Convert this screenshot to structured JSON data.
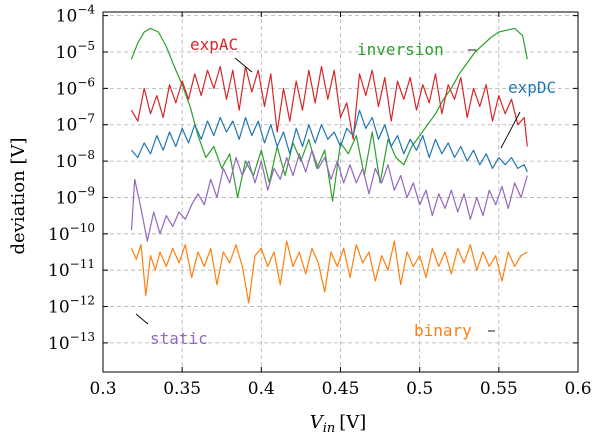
{
  "chart_data": {
    "type": "line",
    "xlabel": {
      "main": "V",
      "sub": "in",
      "unit": "[V]"
    },
    "ylabel": "deviation [V]",
    "y_scale": "log",
    "xlim": [
      0.3,
      0.6
    ],
    "ylim_exponent": [
      -13.8,
      -3.9
    ],
    "x_ticks": [
      {
        "v": 0.3,
        "label": "0.3"
      },
      {
        "v": 0.35,
        "label": "0.35"
      },
      {
        "v": 0.4,
        "label": "0.4"
      },
      {
        "v": 0.45,
        "label": "0.45"
      },
      {
        "v": 0.5,
        "label": "0.5"
      },
      {
        "v": 0.55,
        "label": "0.55"
      },
      {
        "v": 0.6,
        "label": "0.6"
      }
    ],
    "y_ticks": [
      {
        "exp": -4,
        "base": "10",
        "sup": "−4"
      },
      {
        "exp": -5,
        "base": "10",
        "sup": "−5"
      },
      {
        "exp": -6,
        "base": "10",
        "sup": "−6"
      },
      {
        "exp": -7,
        "base": "10",
        "sup": "−7"
      },
      {
        "exp": -8,
        "base": "10",
        "sup": "−8"
      },
      {
        "exp": -9,
        "base": "10",
        "sup": "−9"
      },
      {
        "exp": -10,
        "base": "10",
        "sup": "−10"
      },
      {
        "exp": -11,
        "base": "10",
        "sup": "−11"
      },
      {
        "exp": -12,
        "base": "10",
        "sup": "−12"
      },
      {
        "exp": -13,
        "base": "10",
        "sup": "−13"
      }
    ],
    "grid": true,
    "series": [
      {
        "name": "inversion",
        "color": "#2ca02c",
        "x": [
          0.318,
          0.322,
          0.326,
          0.33,
          0.335,
          0.34,
          0.345,
          0.35,
          0.355,
          0.36,
          0.365,
          0.37,
          0.375,
          0.38,
          0.385,
          0.39,
          0.395,
          0.4,
          0.405,
          0.41,
          0.415,
          0.42,
          0.425,
          0.43,
          0.435,
          0.44,
          0.445,
          0.45,
          0.455,
          0.46,
          0.465,
          0.47,
          0.475,
          0.48,
          0.485,
          0.49,
          0.495,
          0.5,
          0.505,
          0.51,
          0.515,
          0.52,
          0.525,
          0.53,
          0.535,
          0.54,
          0.545,
          0.55,
          0.555,
          0.56,
          0.565,
          0.568
        ],
        "y_exp": [
          -5.2,
          -4.75,
          -4.45,
          -4.35,
          -4.45,
          -4.85,
          -5.4,
          -5.9,
          -6.5,
          -7.3,
          -7.9,
          -7.6,
          -8.2,
          -7.8,
          -9.0,
          -8.0,
          -8.4,
          -7.7,
          -8.6,
          -7.6,
          -8.4,
          -7.5,
          -8.0,
          -7.4,
          -8.2,
          -7.7,
          -9.1,
          -7.5,
          -7.8,
          -7.3,
          -8.4,
          -7.2,
          -8.6,
          -7.4,
          -7.9,
          -8.1,
          -7.6,
          -7.3,
          -7.0,
          -6.7,
          -6.3,
          -6.0,
          -5.6,
          -5.3,
          -5.0,
          -4.8,
          -4.6,
          -4.45,
          -4.4,
          -4.35,
          -4.55,
          -5.2
        ]
      },
      {
        "name": "expAC",
        "color": "#d62728",
        "x": [
          0.318,
          0.322,
          0.326,
          0.33,
          0.334,
          0.338,
          0.342,
          0.346,
          0.35,
          0.354,
          0.358,
          0.362,
          0.366,
          0.37,
          0.374,
          0.378,
          0.382,
          0.386,
          0.39,
          0.394,
          0.398,
          0.402,
          0.406,
          0.41,
          0.414,
          0.418,
          0.422,
          0.426,
          0.43,
          0.434,
          0.438,
          0.442,
          0.446,
          0.45,
          0.454,
          0.458,
          0.462,
          0.466,
          0.47,
          0.474,
          0.478,
          0.482,
          0.486,
          0.49,
          0.494,
          0.498,
          0.502,
          0.506,
          0.51,
          0.514,
          0.518,
          0.522,
          0.526,
          0.53,
          0.534,
          0.538,
          0.542,
          0.546,
          0.55,
          0.554,
          0.558,
          0.562,
          0.566,
          0.568
        ],
        "y_exp": [
          -6.6,
          -6.9,
          -6.0,
          -6.7,
          -6.2,
          -6.8,
          -5.9,
          -6.4,
          -5.8,
          -6.3,
          -5.6,
          -6.2,
          -5.5,
          -6.0,
          -5.4,
          -6.3,
          -5.5,
          -6.6,
          -5.4,
          -6.1,
          -5.5,
          -6.5,
          -5.6,
          -7.2,
          -6.0,
          -6.9,
          -5.8,
          -6.6,
          -5.5,
          -6.4,
          -5.4,
          -6.3,
          -5.5,
          -6.8,
          -6.4,
          -7.4,
          -5.6,
          -6.2,
          -5.5,
          -6.5,
          -5.7,
          -6.9,
          -5.8,
          -6.3,
          -5.7,
          -6.6,
          -5.9,
          -6.4,
          -5.6,
          -6.7,
          -5.9,
          -6.3,
          -5.7,
          -6.8,
          -6.0,
          -6.5,
          -5.9,
          -6.9,
          -6.2,
          -6.7,
          -6.3,
          -7.0,
          -6.8,
          -7.6
        ]
      },
      {
        "name": "expDC",
        "color": "#1f77b4",
        "x": [
          0.318,
          0.322,
          0.326,
          0.33,
          0.334,
          0.338,
          0.342,
          0.346,
          0.35,
          0.354,
          0.358,
          0.362,
          0.366,
          0.37,
          0.374,
          0.378,
          0.382,
          0.386,
          0.39,
          0.394,
          0.398,
          0.402,
          0.406,
          0.41,
          0.414,
          0.418,
          0.422,
          0.426,
          0.43,
          0.434,
          0.438,
          0.442,
          0.446,
          0.45,
          0.454,
          0.458,
          0.462,
          0.466,
          0.47,
          0.474,
          0.478,
          0.482,
          0.486,
          0.49,
          0.494,
          0.498,
          0.502,
          0.506,
          0.51,
          0.514,
          0.518,
          0.522,
          0.526,
          0.53,
          0.534,
          0.538,
          0.542,
          0.546,
          0.55,
          0.554,
          0.558,
          0.562,
          0.566,
          0.568
        ],
        "y_exp": [
          -7.7,
          -7.9,
          -7.5,
          -7.8,
          -7.3,
          -7.7,
          -7.2,
          -7.6,
          -7.1,
          -7.5,
          -7.0,
          -7.4,
          -6.9,
          -7.3,
          -6.8,
          -7.2,
          -6.9,
          -7.4,
          -6.8,
          -7.3,
          -6.9,
          -7.5,
          -7.0,
          -7.6,
          -7.2,
          -7.8,
          -7.1,
          -7.6,
          -7.0,
          -7.5,
          -7.0,
          -7.4,
          -7.2,
          -7.6,
          -7.1,
          -7.3,
          -6.6,
          -7.1,
          -6.8,
          -7.4,
          -7.0,
          -7.6,
          -7.3,
          -7.8,
          -7.4,
          -7.7,
          -7.3,
          -7.9,
          -7.4,
          -7.8,
          -7.5,
          -7.9,
          -7.6,
          -8.0,
          -7.7,
          -8.1,
          -7.8,
          -8.2,
          -7.9,
          -8.1,
          -7.9,
          -8.2,
          -8.1,
          -8.3
        ]
      },
      {
        "name": "static",
        "color": "#9467bd",
        "x": [
          0.318,
          0.32,
          0.324,
          0.328,
          0.332,
          0.336,
          0.34,
          0.344,
          0.348,
          0.352,
          0.356,
          0.36,
          0.364,
          0.368,
          0.372,
          0.376,
          0.38,
          0.384,
          0.388,
          0.392,
          0.396,
          0.4,
          0.404,
          0.408,
          0.412,
          0.416,
          0.42,
          0.424,
          0.428,
          0.432,
          0.436,
          0.44,
          0.444,
          0.448,
          0.452,
          0.456,
          0.46,
          0.464,
          0.468,
          0.472,
          0.476,
          0.48,
          0.484,
          0.488,
          0.492,
          0.496,
          0.5,
          0.504,
          0.508,
          0.512,
          0.516,
          0.52,
          0.524,
          0.528,
          0.532,
          0.536,
          0.54,
          0.544,
          0.548,
          0.552,
          0.556,
          0.56,
          0.564,
          0.568
        ],
        "y_exp": [
          -9.9,
          -8.5,
          -9.3,
          -10.2,
          -9.4,
          -10.0,
          -9.5,
          -9.8,
          -9.4,
          -9.6,
          -9.2,
          -8.9,
          -9.2,
          -8.5,
          -9.0,
          -8.2,
          -8.6,
          -7.9,
          -8.4,
          -8.0,
          -8.6,
          -8.0,
          -8.8,
          -8.2,
          -8.5,
          -7.9,
          -8.4,
          -7.8,
          -8.3,
          -7.7,
          -8.2,
          -7.9,
          -8.5,
          -8.0,
          -8.6,
          -8.1,
          -8.6,
          -8.2,
          -8.9,
          -8.2,
          -8.6,
          -8.1,
          -8.8,
          -8.4,
          -9.0,
          -8.6,
          -9.2,
          -8.8,
          -9.5,
          -8.9,
          -9.3,
          -8.8,
          -9.4,
          -8.9,
          -9.6,
          -9.0,
          -9.5,
          -8.8,
          -9.2,
          -8.7,
          -9.3,
          -8.6,
          -9.0,
          -8.4
        ]
      },
      {
        "name": "binary",
        "color": "#ff7f0e",
        "x": [
          0.318,
          0.321,
          0.324,
          0.327,
          0.33,
          0.333,
          0.336,
          0.34,
          0.344,
          0.348,
          0.352,
          0.356,
          0.36,
          0.364,
          0.368,
          0.372,
          0.376,
          0.38,
          0.384,
          0.388,
          0.392,
          0.396,
          0.4,
          0.404,
          0.408,
          0.412,
          0.416,
          0.42,
          0.424,
          0.428,
          0.432,
          0.436,
          0.44,
          0.444,
          0.448,
          0.452,
          0.456,
          0.46,
          0.464,
          0.468,
          0.472,
          0.476,
          0.48,
          0.484,
          0.488,
          0.492,
          0.496,
          0.5,
          0.504,
          0.508,
          0.512,
          0.516,
          0.52,
          0.524,
          0.528,
          0.532,
          0.536,
          0.54,
          0.544,
          0.548,
          0.552,
          0.556,
          0.56,
          0.564,
          0.568
        ],
        "y_exp": [
          -10.4,
          -10.7,
          -10.3,
          -11.7,
          -10.6,
          -11.0,
          -10.5,
          -10.9,
          -10.4,
          -10.8,
          -10.3,
          -11.2,
          -10.5,
          -10.9,
          -10.4,
          -11.4,
          -10.5,
          -10.8,
          -10.3,
          -10.9,
          -11.9,
          -10.6,
          -10.4,
          -10.9,
          -10.5,
          -11.4,
          -10.2,
          -10.9,
          -10.5,
          -11.1,
          -10.4,
          -10.8,
          -11.6,
          -10.5,
          -10.9,
          -10.4,
          -11.2,
          -10.3,
          -10.8,
          -10.5,
          -11.3,
          -10.6,
          -11.0,
          -10.2,
          -11.4,
          -10.5,
          -10.9,
          -10.6,
          -11.2,
          -10.4,
          -10.9,
          -10.5,
          -11.1,
          -10.4,
          -10.8,
          -10.3,
          -11.0,
          -10.5,
          -10.9,
          -10.6,
          -11.3,
          -10.5,
          -10.9,
          -10.6,
          -10.5
        ]
      }
    ],
    "annotations": [
      {
        "series": "expAC",
        "text": "expAC",
        "color": "#d62728"
      },
      {
        "series": "inversion",
        "text": "inversion",
        "color": "#2ca02c"
      },
      {
        "series": "expDC",
        "text": "expDC",
        "color": "#1f77b4"
      },
      {
        "series": "static",
        "text": "static",
        "color": "#9467bd"
      },
      {
        "series": "binary",
        "text": "binary",
        "color": "#ff7f0e"
      }
    ]
  }
}
